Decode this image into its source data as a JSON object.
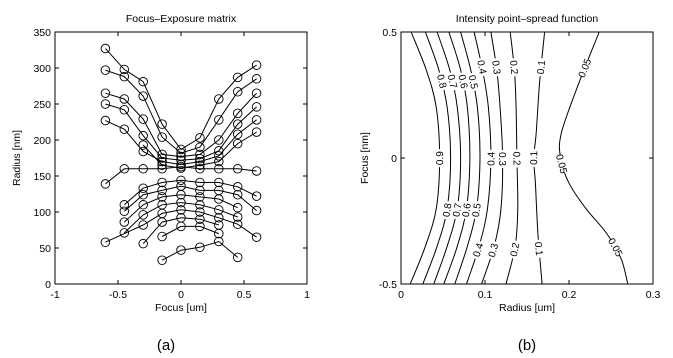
{
  "chart_data": [
    {
      "type": "line",
      "title": "Focus–Exposure matrix",
      "xlabel": "Focus [um]",
      "ylabel": "Radius [nm]",
      "xlim": [
        -1,
        1
      ],
      "ylim": [
        0,
        350
      ],
      "xticks": [
        "-1",
        "-0.5",
        "0",
        "0.5",
        "1"
      ],
      "yticks": [
        "0",
        "50",
        "100",
        "150",
        "200",
        "250",
        "300",
        "350"
      ],
      "marker": "circle",
      "grid": false,
      "caption": "(a)",
      "series": [
        {
          "x": [
            -0.6,
            -0.45,
            -0.3,
            -0.15,
            0,
            0.15,
            0.3,
            0.45,
            0.6
          ],
          "y": [
            327,
            298,
            281,
            222,
            187,
            203,
            257,
            287,
            304
          ]
        },
        {
          "x": [
            -0.6,
            -0.45,
            -0.3,
            -0.15,
            0,
            0.15,
            0.3,
            0.45,
            0.6
          ],
          "y": [
            297,
            288,
            261,
            204,
            182,
            190,
            228,
            267,
            285
          ]
        },
        {
          "x": [
            -0.6,
            -0.45,
            -0.3,
            -0.15,
            0,
            0.15,
            0.3,
            0.45,
            0.6
          ],
          "y": [
            265,
            257,
            229,
            180,
            177,
            180,
            200,
            237,
            265
          ]
        },
        {
          "x": [
            -0.6,
            -0.45,
            -0.3,
            -0.15,
            0,
            0.15,
            0.3,
            0.45,
            0.6
          ],
          "y": [
            250,
            242,
            206,
            175,
            172,
            174,
            185,
            222,
            246
          ]
        },
        {
          "x": [
            -0.6,
            -0.45,
            -0.3,
            -0.15,
            0,
            0.15,
            0.3,
            0.45,
            0.6
          ],
          "y": [
            227,
            215,
            184,
            170,
            166,
            170,
            178,
            208,
            228
          ]
        },
        {
          "x": [
            -0.3,
            -0.15,
            0,
            0.15,
            0.3,
            0.45,
            0.6
          ],
          "y": [
            193,
            165,
            161,
            165,
            170,
            195,
            211
          ]
        },
        {
          "x": [
            -0.6,
            -0.45,
            -0.3,
            -0.15,
            0,
            0.15,
            0.3,
            0.45,
            0.6
          ],
          "y": [
            139,
            160,
            160,
            160,
            163,
            160,
            160,
            160,
            157
          ]
        },
        {
          "x": [
            -0.45,
            -0.3,
            -0.15,
            0,
            0.15,
            0.3,
            0.45,
            0.6
          ],
          "y": [
            110,
            133,
            141,
            144,
            141,
            141,
            135,
            122
          ]
        },
        {
          "x": [
            -0.45,
            -0.3,
            -0.15,
            0,
            0.15,
            0.3,
            0.45,
            0.6
          ],
          "y": [
            101,
            124,
            130,
            136,
            130,
            130,
            124,
            102
          ]
        },
        {
          "x": [
            -0.45,
            -0.3,
            -0.15,
            0,
            0.15,
            0.3,
            0.45
          ],
          "y": [
            86,
            110,
            121,
            124,
            121,
            118,
            106
          ]
        },
        {
          "x": [
            -0.45,
            -0.3,
            -0.15,
            0,
            0.15,
            0.3,
            0.45
          ],
          "y": [
            71,
            96,
            110,
            113,
            110,
            103,
            93
          ]
        },
        {
          "x": [
            -0.6,
            -0.3,
            -0.15,
            0,
            0.15,
            0.3,
            0.45,
            0.6
          ],
          "y": [
            58,
            82,
            98,
            103,
            100,
            92,
            83,
            65
          ]
        },
        {
          "x": [
            -0.3,
            -0.15,
            0,
            0.15,
            0.3
          ],
          "y": [
            56,
            86,
            92,
            90,
            82
          ]
        },
        {
          "x": [
            -0.15,
            0,
            0.15,
            0.3
          ],
          "y": [
            66,
            80,
            80,
            70
          ]
        },
        {
          "x": [
            -0.15,
            0,
            0.15,
            0.3,
            0.45
          ],
          "y": [
            33,
            47,
            51,
            59,
            37
          ]
        }
      ]
    },
    {
      "type": "contour",
      "title": "Intensity point–spread function",
      "xlabel": "Radius [um]",
      "ylabel": "Focus [nm]",
      "xlim": [
        0,
        0.3
      ],
      "ylim": [
        -0.5,
        0.5
      ],
      "xticks": [
        "0",
        "0.1",
        "0.2",
        "0.3"
      ],
      "yticks": [
        "-0.5",
        "0",
        "0.5"
      ],
      "grid": false,
      "caption": "(b)",
      "contours": [
        {
          "level": "0.05",
          "labels": [
            "0.05",
            "0.05",
            "0.05"
          ],
          "points": [
            [
              0.236,
              0.5
            ],
            [
              0.212,
              0.3
            ],
            [
              0.191,
              0.1
            ],
            [
              0.19,
              0
            ],
            [
              0.2,
              -0.1
            ],
            [
              0.22,
              -0.2
            ],
            [
              0.245,
              -0.3
            ],
            [
              0.262,
              -0.4
            ],
            [
              0.27,
              -0.5
            ]
          ]
        },
        {
          "level": "0.1",
          "labels": [
            "0.1",
            "0.1",
            "0.1"
          ],
          "points": [
            [
              0.171,
              0.5
            ],
            [
              0.165,
              0.3
            ],
            [
              0.161,
              0.1
            ],
            [
              0.158,
              0
            ],
            [
              0.16,
              -0.1
            ],
            [
              0.163,
              -0.3
            ],
            [
              0.168,
              -0.5
            ]
          ]
        },
        {
          "level": "0.2",
          "labels": [
            "0.2",
            "0.2",
            "0.2"
          ],
          "points": [
            [
              0.13,
              0.5
            ],
            [
              0.135,
              0.35
            ],
            [
              0.137,
              0.2
            ],
            [
              0.138,
              0
            ],
            [
              0.139,
              -0.2
            ],
            [
              0.136,
              -0.35
            ],
            [
              0.125,
              -0.5
            ]
          ]
        },
        {
          "level": "0.3",
          "labels": [
            "0.3",
            "0.3",
            "0.3"
          ],
          "points": [
            [
              0.107,
              0.5
            ],
            [
              0.114,
              0.35
            ],
            [
              0.118,
              0.2
            ],
            [
              0.121,
              0
            ],
            [
              0.119,
              -0.2
            ],
            [
              0.111,
              -0.35
            ],
            [
              0.096,
              -0.5
            ]
          ]
        },
        {
          "level": "0.4",
          "labels": [
            "0.4",
            "0.4",
            "0.4"
          ],
          "points": [
            [
              0.087,
              0.5
            ],
            [
              0.097,
              0.35
            ],
            [
              0.104,
              0.2
            ],
            [
              0.107,
              0
            ],
            [
              0.103,
              -0.2
            ],
            [
              0.093,
              -0.35
            ],
            [
              0.078,
              -0.5
            ]
          ]
        },
        {
          "level": "0.5",
          "labels": [
            "0.5",
            "0.5"
          ],
          "points": [
            [
              0.071,
              0.5
            ],
            [
              0.083,
              0.35
            ],
            [
              0.091,
              0.2
            ],
            [
              0.094,
              0
            ],
            [
              0.09,
              -0.2
            ],
            [
              0.079,
              -0.35
            ],
            [
              0.064,
              -0.5
            ]
          ]
        },
        {
          "level": "0.6",
          "labels": [
            "0.6",
            "0.6"
          ],
          "points": [
            [
              0.057,
              0.5
            ],
            [
              0.071,
              0.35
            ],
            [
              0.079,
              0.2
            ],
            [
              0.082,
              0
            ],
            [
              0.078,
              -0.2
            ],
            [
              0.067,
              -0.35
            ],
            [
              0.051,
              -0.5
            ]
          ]
        },
        {
          "level": "0.7",
          "labels": [
            "0.7",
            "0.7"
          ],
          "points": [
            [
              0.043,
              0.5
            ],
            [
              0.058,
              0.35
            ],
            [
              0.067,
              0.2
            ],
            [
              0.071,
              0
            ],
            [
              0.067,
              -0.2
            ],
            [
              0.055,
              -0.35
            ],
            [
              0.039,
              -0.5
            ]
          ]
        },
        {
          "level": "0.8",
          "labels": [
            "0.8",
            "0.8"
          ],
          "points": [
            [
              0.029,
              0.5
            ],
            [
              0.045,
              0.35
            ],
            [
              0.055,
              0.2
            ],
            [
              0.059,
              0
            ],
            [
              0.055,
              -0.2
            ],
            [
              0.043,
              -0.35
            ],
            [
              0.026,
              -0.5
            ]
          ]
        },
        {
          "level": "0.9",
          "labels": [
            "0.9"
          ],
          "points": [
            [
              0.012,
              0.5
            ],
            [
              0.03,
              0.35
            ],
            [
              0.042,
              0.2
            ],
            [
              0.046,
              0
            ],
            [
              0.042,
              -0.2
            ],
            [
              0.029,
              -0.35
            ],
            [
              0.011,
              -0.5
            ]
          ]
        }
      ]
    }
  ]
}
